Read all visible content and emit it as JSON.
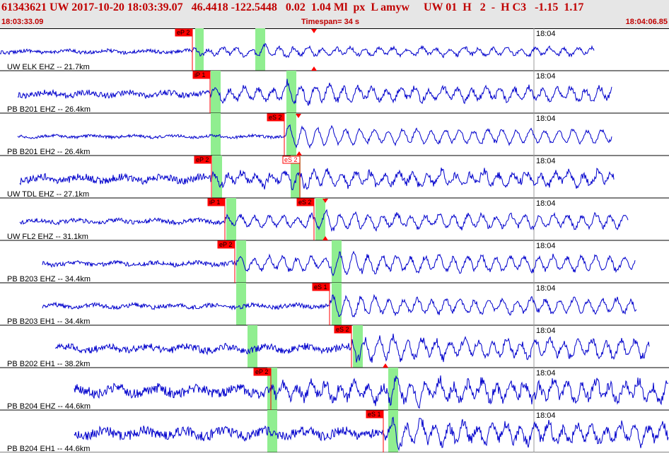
{
  "header": {
    "title": "61343621 UW 2017-10-20 18:03:39.07   46.4418 -122.5448   0.02  1.04 Ml  px  L amyw     UW 01  H   2  -  H C3   -1.15  1.17",
    "time_start": "18:03:33.09",
    "timespan": "Timespan=  34 s",
    "time_end": "18:04:06.85"
  },
  "colors": {
    "trace": "#0000cc",
    "pick": "#ff0000",
    "window": "#90ee90",
    "text": "#c00000"
  },
  "tick_label": "18:04",
  "traces": [
    {
      "label": "UW ELK EHZ -- 21.7km",
      "start": 0,
      "end": 840,
      "amp": 7,
      "noise": 2.5,
      "picks": [
        {
          "label": "eP 2",
          "t": 272,
          "filled": true
        }
      ],
      "marker_top": 444,
      "marker_bottom": 444,
      "windows": [
        [
          276,
          288
        ],
        [
          361,
          375
        ]
      ]
    },
    {
      "label": "PB B201 EHZ -- 26.4km",
      "start": 25,
      "end": 865,
      "amp": 12,
      "noise": 4,
      "picks": [
        {
          "label": "iP 1",
          "t": 297,
          "filled": true
        }
      ],
      "marker_top": null,
      "marker_bottom": null,
      "windows": [
        [
          298,
          312
        ],
        [
          405,
          419
        ]
      ]
    },
    {
      "label": "PB B201 EH2 -- 26.4km",
      "start": 25,
      "end": 865,
      "amp": 13,
      "noise": 2,
      "picks": [
        {
          "label": "eS 2",
          "t": 402,
          "filled": true
        }
      ],
      "marker_top": 422,
      "marker_bottom": 423,
      "windows": [
        [
          298,
          312
        ],
        [
          405,
          419
        ]
      ]
    },
    {
      "label": "UW TDL EHZ -- 27.1km",
      "start": 28,
      "end": 868,
      "amp": 11,
      "noise": 5,
      "picks": [
        {
          "label": "eP 2",
          "t": 299,
          "filled": true
        },
        {
          "label": "eS 2",
          "t": 424,
          "filled": false
        }
      ],
      "marker_top": null,
      "marker_bottom": null,
      "windows": [
        [
          300,
          314
        ],
        [
          411,
          425
        ]
      ]
    },
    {
      "label": "UW FL2 EHZ -- 31.1km",
      "start": 28,
      "end": 888,
      "amp": 12,
      "noise": 3,
      "picks": [
        {
          "label": "iP 1",
          "t": 318,
          "filled": true
        },
        {
          "label": "eS 2",
          "t": 444,
          "filled": true
        }
      ],
      "marker_top": 460,
      "marker_bottom": 460,
      "windows": [
        [
          320,
          334
        ],
        [
          446,
          460
        ]
      ]
    },
    {
      "label": "PB B203 EHZ -- 34.4km",
      "start": 60,
      "end": 898,
      "amp": 14,
      "noise": 3,
      "picks": [
        {
          "label": "eP 2",
          "t": 332,
          "filled": true
        }
      ],
      "marker_top": null,
      "marker_bottom": null,
      "windows": [
        [
          334,
          348
        ],
        [
          469,
          483
        ]
      ]
    },
    {
      "label": "PB B203 EH1 -- 34.4km",
      "start": 60,
      "end": 900,
      "amp": 13,
      "noise": 3,
      "picks": [
        {
          "label": "eS 1",
          "t": 466,
          "filled": true
        }
      ],
      "marker_top": null,
      "marker_bottom": null,
      "windows": [
        [
          334,
          348
        ],
        [
          469,
          483
        ]
      ]
    },
    {
      "label": "PB B202 EH1 -- 38.2km",
      "start": 78,
      "end": 918,
      "amp": 15,
      "noise": 5,
      "picks": [
        {
          "label": "eS 2",
          "t": 497,
          "filled": true
        }
      ],
      "marker_top": null,
      "marker_bottom": 545,
      "windows": [
        [
          350,
          364
        ],
        [
          499,
          513
        ]
      ]
    },
    {
      "label": "PB B204 EHZ -- 44.6km",
      "start": 105,
      "end": 945,
      "amp": 16,
      "noise": 7,
      "picks": [
        {
          "label": "eP 2",
          "t": 383,
          "filled": true
        }
      ],
      "marker_top": null,
      "marker_bottom": null,
      "windows": [
        [
          378,
          392
        ],
        [
          549,
          563
        ]
      ]
    },
    {
      "label": "PB B204 EH1 -- 44.6km",
      "start": 105,
      "end": 945,
      "amp": 16,
      "noise": 7,
      "picks": [
        {
          "label": "eS 1",
          "t": 542,
          "filled": true
        }
      ],
      "marker_top": null,
      "marker_bottom": null,
      "windows": [
        [
          378,
          392
        ],
        [
          549,
          563
        ]
      ]
    }
  ]
}
